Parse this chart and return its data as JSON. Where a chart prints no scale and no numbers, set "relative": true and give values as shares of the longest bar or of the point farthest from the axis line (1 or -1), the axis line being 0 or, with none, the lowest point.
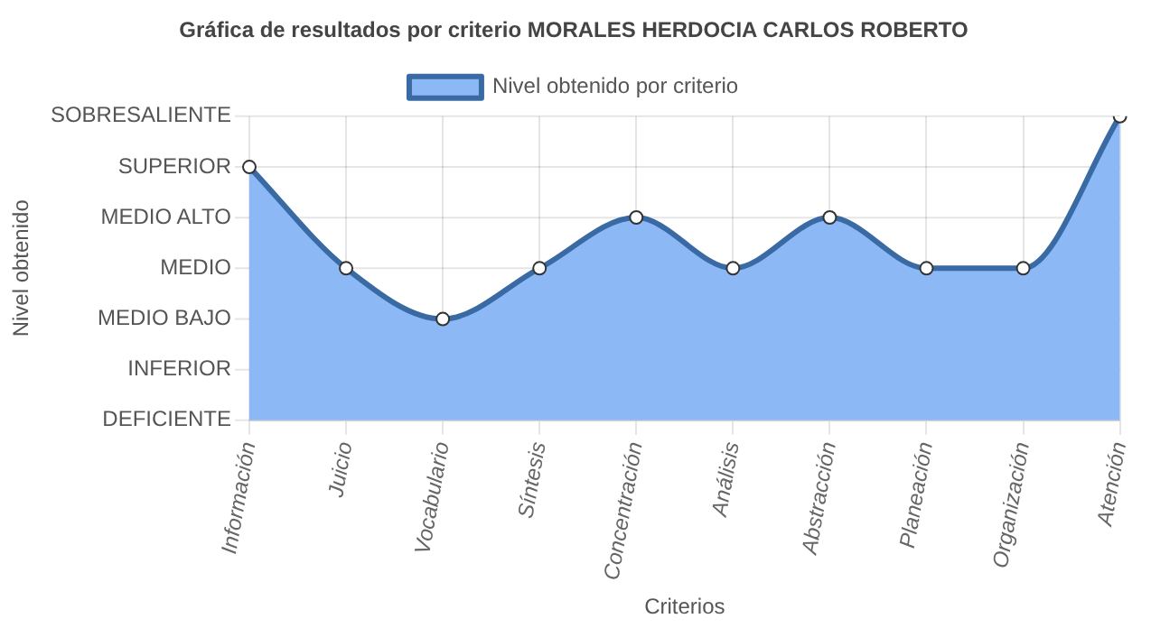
{
  "chart_data": {
    "type": "area",
    "title": "Gráfica de resultados por criterio MORALES HERDOCIA CARLOS ROBERTO",
    "xlabel": "Criterios",
    "categories": [
      "Información",
      "Juicio",
      "Vocabulario",
      "Síntesis",
      "Concentración",
      "Análisis",
      "Abstracción",
      "Planeación",
      "Organización",
      "Atención"
    ],
    "relative": true,
    "annotations": [
      "Nivel obtenido",
      "SOBRESALIENTE",
      "SUPERIOR",
      "MEDIO ALTO",
      "MEDIO",
      "MEDIO BAJO",
      "INFERIOR",
      "DEFICIENTE"
    ],
    "series": [
      {
        "name": "Nivel obtenido por criterio",
        "color": "#3a6aa3",
        "values": [
          0.833,
          0.5,
          0.333,
          0.5,
          0.667,
          0.5,
          0.667,
          0.5,
          0.5,
          1
        ]
      }
    ],
    "grid": true,
    "legend": "top",
    "marker": "circle",
    "line_style": "solid"
  }
}
